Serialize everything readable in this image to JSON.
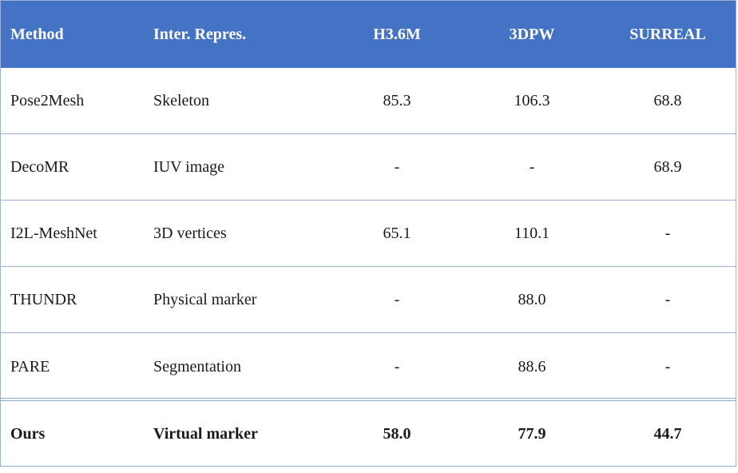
{
  "table": {
    "headers": [
      "Method",
      "Inter. Repres.",
      "H3.6M",
      "3DPW",
      "SURREAL"
    ],
    "rows": [
      [
        "Pose2Mesh",
        "Skeleton",
        "85.3",
        "106.3",
        "68.8"
      ],
      [
        "DecoMR",
        "IUV image",
        "-",
        "-",
        "68.9"
      ],
      [
        "I2L-MeshNet",
        "3D vertices",
        "65.1",
        "110.1",
        "-"
      ],
      [
        "THUNDR",
        "Physical marker",
        "-",
        "88.0",
        "-"
      ],
      [
        "PARE",
        "Segmentation",
        "-",
        "88.6",
        "-"
      ],
      [
        "Ours",
        "Virtual marker",
        "58.0",
        "77.9",
        "44.7"
      ]
    ],
    "colors": {
      "header_bg": "#4472c4",
      "header_text": "#ffffff",
      "rule": "#9bb1d6"
    }
  }
}
